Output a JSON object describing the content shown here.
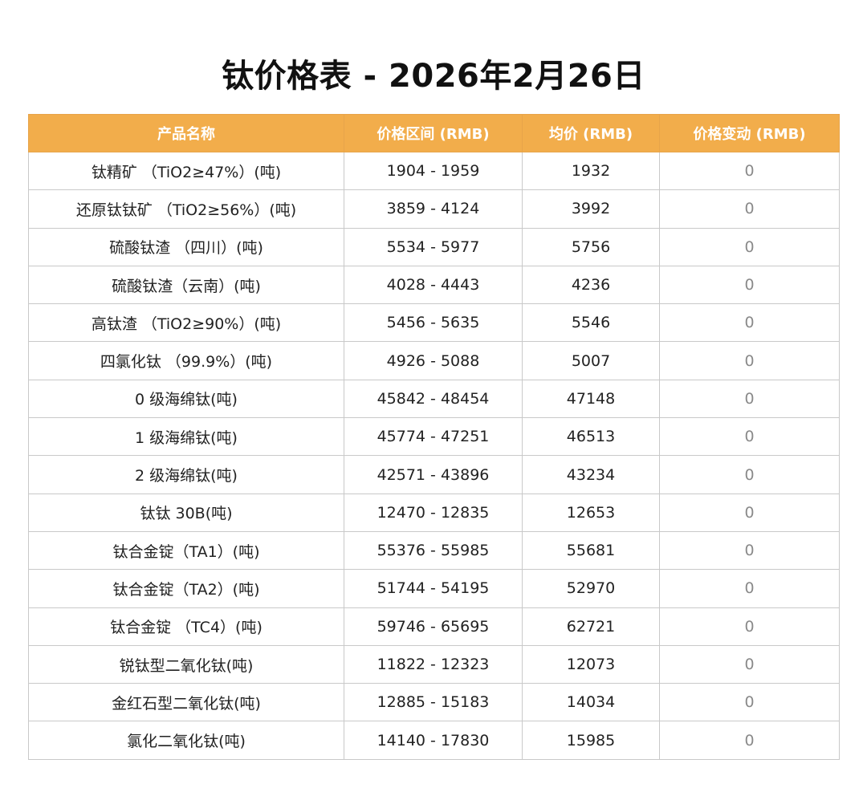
{
  "title": "钛价格表 - 2026年2月26日",
  "table": {
    "headers": [
      "产品名称",
      "价格区间 (RMB)",
      "均价 (RMB)",
      "价格变动 (RMB)"
    ],
    "rows": [
      {
        "name": "钛精矿 （TiO2≥47%）(吨)",
        "range": "1904 - 1959",
        "avg": "1932",
        "change": "0"
      },
      {
        "name": "还原钛钛矿 （TiO2≥56%）(吨)",
        "range": "3859 - 4124",
        "avg": "3992",
        "change": "0"
      },
      {
        "name": "硫酸钛渣 （四川）(吨)",
        "range": "5534 - 5977",
        "avg": "5756",
        "change": "0"
      },
      {
        "name": "硫酸钛渣（云南）(吨)",
        "range": "4028 - 4443",
        "avg": "4236",
        "change": "0"
      },
      {
        "name": "高钛渣 （TiO2≥90%）(吨)",
        "range": "5456 - 5635",
        "avg": "5546",
        "change": "0"
      },
      {
        "name": "四氯化钛 （99.9%）(吨)",
        "range": "4926 - 5088",
        "avg": "5007",
        "change": "0"
      },
      {
        "name": "0 级海绵钛(吨)",
        "range": "45842 - 48454",
        "avg": "47148",
        "change": "0"
      },
      {
        "name": "1 级海绵钛(吨)",
        "range": "45774 - 47251",
        "avg": "46513",
        "change": "0"
      },
      {
        "name": "2 级海绵钛(吨)",
        "range": "42571 - 43896",
        "avg": "43234",
        "change": "0"
      },
      {
        "name": "钛钛 30B(吨)",
        "range": "12470 - 12835",
        "avg": "12653",
        "change": "0"
      },
      {
        "name": "钛合金锭（TA1）(吨)",
        "range": "55376 - 55985",
        "avg": "55681",
        "change": "0"
      },
      {
        "name": "钛合金锭（TA2）(吨)",
        "range": "51744 - 54195",
        "avg": "52970",
        "change": "0"
      },
      {
        "name": "钛合金锭 （TC4）(吨)",
        "range": "59746 - 65695",
        "avg": "62721",
        "change": "0"
      },
      {
        "name": "锐钛型二氧化钛(吨)",
        "range": "11822 - 12323",
        "avg": "12073",
        "change": "0"
      },
      {
        "name": "金红石型二氧化钛(吨)",
        "range": "12885 - 15183",
        "avg": "14034",
        "change": "0"
      },
      {
        "name": "氯化二氧化钛(吨)",
        "range": "14140 - 17830",
        "avg": "15985",
        "change": "0"
      }
    ]
  },
  "colors": {
    "header_bg": "#f2ad4b",
    "header_text": "#ffffff",
    "border": "#c9c9c9"
  }
}
